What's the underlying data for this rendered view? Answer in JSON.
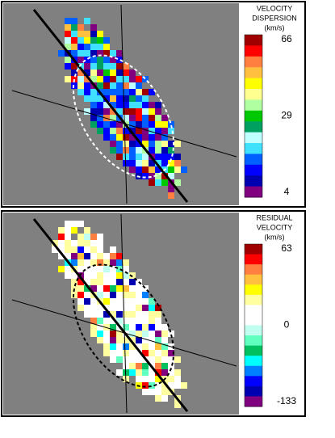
{
  "panels": [
    {
      "colorbar": {
        "title": [
          "VELOCITY",
          "DISPERSION",
          "(km/s)"
        ],
        "ticks": [
          "66",
          "29",
          "4"
        ],
        "colors": [
          "#a00000",
          "#ff0000",
          "#ff7f40",
          "#ffc040",
          "#ffff00",
          "#ffff90",
          "#b0ffa0",
          "#00c800",
          "#00a060",
          "#c0ffff",
          "#40e0ff",
          "#0060ff",
          "#0000ff",
          "#0000b0",
          "#800080"
        ]
      }
    },
    {
      "colorbar": {
        "title": [
          "RESIDUAL",
          "VELOCITY",
          "(km/s)"
        ],
        "ticks": [
          "63",
          "0",
          "-133"
        ],
        "colors": [
          "#a00000",
          "#ff0000",
          "#ff7f40",
          "#ffc040",
          "#ffff00",
          "#ffffa0",
          "#ffffff",
          "#ffffff",
          "#c0fff0",
          "#60ffc0",
          "#00c060",
          "#00ffff",
          "#0080ff",
          "#0000ff",
          "#0000b0",
          "#800080"
        ]
      }
    }
  ]
}
